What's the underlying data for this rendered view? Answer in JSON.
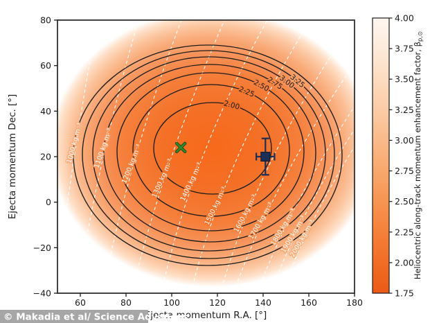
{
  "figure": {
    "watermark": "© Makadia et al/ Science Advances"
  },
  "chart_data": {
    "type": "contour",
    "xlabel": "Ejecta momentum R.A. [°]",
    "ylabel": "Ejecta momentum Dec. [°]",
    "xlim": [
      50,
      180
    ],
    "ylim": [
      -40,
      80
    ],
    "xticks": [
      60,
      80,
      100,
      120,
      140,
      160,
      180
    ],
    "yticks_display": [
      "80",
      "60",
      "40",
      "20",
      "0",
      "−20",
      "−40"
    ],
    "yticks_values": [
      80,
      60,
      40,
      20,
      0,
      -20,
      -40
    ],
    "grid": false,
    "beta_contours": {
      "description": "black solid contours of momentum enhancement factor",
      "labeled_levels": [
        "2.00",
        "2.25",
        "2.50",
        "2.75",
        "3.00",
        "3.25"
      ],
      "unlabeled_outer_rings": 1,
      "line_color": "#1c1c1c"
    },
    "density_contours": {
      "description": "white dashed contours of bulk density",
      "labels": [
        "1000 kg m⁻³",
        "1100 kg m⁻³",
        "1200 kg m⁻³",
        "1300 kg m⁻³",
        "1400 kg m⁻³",
        "1500 kg m⁻³",
        "1600 kg m⁻³",
        "1700 kg m⁻³",
        "1800 kg m⁻³",
        "1900 kg m⁻³",
        "2000 kg m⁻³"
      ],
      "line_color": "#ffffff",
      "style": "dashed"
    },
    "markers": [
      {
        "name": "green-x-marker",
        "shape": "x",
        "color": "#2f8c2b",
        "outline": "#1d4a15",
        "x": 104,
        "y": 24
      },
      {
        "name": "measured-square-marker",
        "shape": "square",
        "color": "#1b2f57",
        "outline": "#0d1830",
        "x": 141,
        "y": 20,
        "xerr": 4,
        "yerr": 8
      }
    ],
    "colorbar": {
      "label_main": "Heliocentric along-track momentum enhancement factor, β",
      "label_sub": "p,⊙",
      "ticks": [
        "4.00",
        "3.75",
        "3.50",
        "3.25",
        "3.00",
        "2.75",
        "2.50",
        "2.25",
        "2.00",
        "1.75"
      ],
      "range": [
        1.75,
        4.0
      ],
      "color_low": "#ea5a17",
      "color_high": "#fef6f0"
    },
    "palette": {
      "center": "#f7691b",
      "edge": "#ffffff"
    }
  }
}
